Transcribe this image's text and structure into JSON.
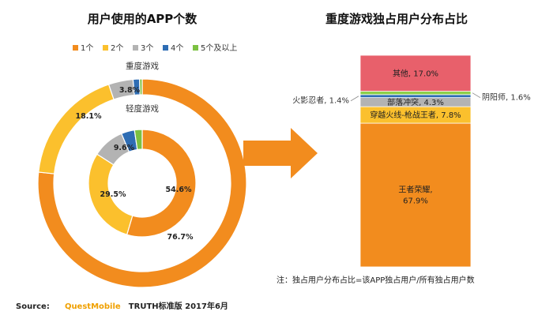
{
  "colors": {
    "c1": "#f28c1e",
    "c2": "#fbc02d",
    "c3": "#b3b3b3",
    "c4": "#2e6db4",
    "c5": "#7cc142",
    "arrow": "#f28c1e",
    "bar_other": "#e8606b",
    "bar_yinyang": "#8ccf4a",
    "bar_huoying": "#2e6db4",
    "bar_buluo": "#b3b3b3",
    "bar_chuanyue": "#fbc02d",
    "bar_wangzhe": "#f28c1e"
  },
  "chart_data": [
    {
      "type": "pie",
      "title": "用户使用的APP个数",
      "legend": {
        "position": "top",
        "entries": [
          "1个",
          "2个",
          "3个",
          "4个",
          "5个及以上"
        ]
      },
      "rings": [
        {
          "name": "重度游戏",
          "categories": [
            "1个",
            "2个",
            "3个",
            "4个",
            "5个及以上"
          ],
          "values": [
            76.7,
            18.1,
            3.8,
            1.0,
            0.4
          ],
          "labels": [
            "76.7%",
            "18.1%",
            "3.8%",
            "",
            ""
          ]
        },
        {
          "name": "轻度游戏",
          "categories": [
            "1个",
            "2个",
            "3个",
            "4个",
            "5个及以上"
          ],
          "values": [
            54.6,
            29.5,
            9.6,
            4.0,
            2.3
          ],
          "labels": [
            "54.6%",
            "29.5%",
            "9.6%",
            "",
            ""
          ]
        }
      ]
    },
    {
      "type": "bar",
      "stacked": true,
      "title": "重度游戏独占用户分布占比",
      "series": [
        {
          "name": "王者荣耀",
          "value": 67.9,
          "label": "王者荣耀,\n67.9%",
          "position": "inside",
          "color_key": "bar_wangzhe"
        },
        {
          "name": "穿越火线-枪战王者",
          "value": 7.8,
          "label": "穿越火线-枪战王者, 7.8%",
          "position": "inside",
          "color_key": "bar_chuanyue"
        },
        {
          "name": "部落冲突",
          "value": 4.3,
          "label": "部落冲突, 4.3%",
          "position": "inside",
          "color_key": "bar_buluo"
        },
        {
          "name": "火影忍者",
          "value": 1.4,
          "label": "火影忍者, 1.4%",
          "position": "left",
          "color_key": "bar_huoying"
        },
        {
          "name": "阴阳师",
          "value": 1.6,
          "label": "阴阳师, 1.6%",
          "position": "right",
          "color_key": "bar_yinyang"
        },
        {
          "name": "其他",
          "value": 17.0,
          "label": "其他, 17.0%",
          "position": "inside",
          "color_key": "bar_other"
        }
      ],
      "ylim": [
        0,
        100
      ]
    }
  ],
  "note": "注：独占用户分布占比=该APP独占用户/所有独占用户数",
  "source": {
    "label": "Source:",
    "name": "QuestMobile",
    "rest": "TRUTH标准版 2017年6月"
  }
}
